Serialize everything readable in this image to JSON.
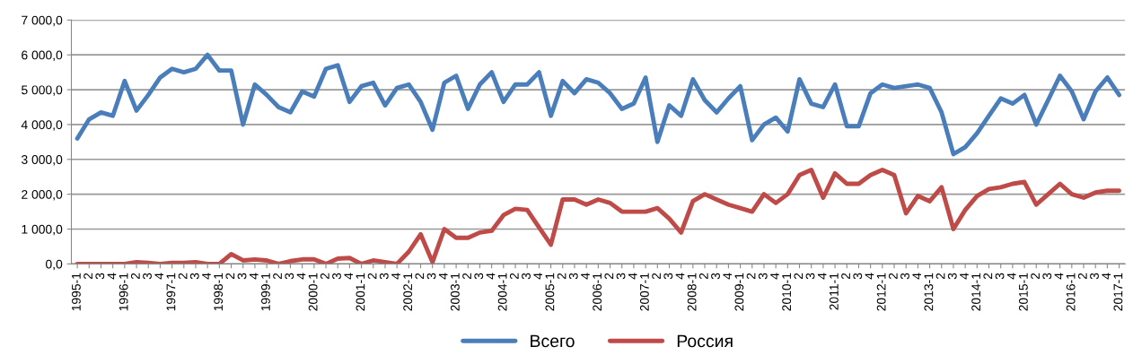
{
  "chart_data": {
    "type": "line",
    "categories": [
      "1995-1",
      "2",
      "3",
      "4",
      "1996-1",
      "2",
      "3",
      "4",
      "1997-1",
      "2",
      "3",
      "4",
      "1998-1",
      "2",
      "3",
      "4",
      "1999-1",
      "2",
      "3",
      "4",
      "2000-1",
      "2",
      "3",
      "4",
      "2001-1",
      "2",
      "3",
      "4",
      "2002-1",
      "2",
      "3",
      "4",
      "2003-1",
      "2",
      "3",
      "4",
      "2004-1",
      "2",
      "3",
      "4",
      "2005-1",
      "2",
      "3",
      "4",
      "2006-1",
      "2",
      "3",
      "4",
      "2007-1",
      "2",
      "3",
      "4",
      "2008-1",
      "2",
      "3",
      "4",
      "2009-1",
      "2",
      "3",
      "4",
      "2010-1",
      "2",
      "3",
      "4",
      "2011-1",
      "2",
      "3",
      "4",
      "2012-1",
      "2",
      "3",
      "4",
      "2013-1",
      "2",
      "3",
      "4",
      "2014-1",
      "2",
      "3",
      "4",
      "2015-1",
      "2",
      "3",
      "4",
      "2016-1",
      "2",
      "3",
      "4",
      "2017-1"
    ],
    "series": [
      {
        "name": "Всего",
        "color": "#4a7ebb",
        "values": [
          3600,
          4150,
          4350,
          4250,
          5250,
          4400,
          4850,
          5350,
          5600,
          5500,
          5600,
          6000,
          5550,
          5550,
          4000,
          5150,
          4850,
          4500,
          4350,
          4950,
          4800,
          5600,
          5700,
          4650,
          5100,
          5200,
          4550,
          5050,
          5150,
          4650,
          3850,
          5200,
          5400,
          4450,
          5150,
          5500,
          4650,
          5150,
          5150,
          5500,
          4250,
          5250,
          4900,
          5300,
          5200,
          4900,
          4450,
          4600,
          5350,
          3500,
          4550,
          4250,
          5300,
          4700,
          4350,
          4750,
          5100,
          3550,
          4000,
          4200,
          3800,
          5300,
          4600,
          4500,
          5150,
          3950,
          3950,
          4900,
          5150,
          5050,
          5100,
          5150,
          5050,
          4350,
          3150,
          3350,
          3750,
          4250,
          4750,
          4600,
          4850,
          4000,
          4700,
          5400,
          4950,
          4150,
          4950,
          5350,
          4850
        ]
      },
      {
        "name": "Россия",
        "color": "#be4b48",
        "values": [
          0,
          0,
          0,
          0,
          0,
          50,
          30,
          0,
          30,
          30,
          50,
          0,
          0,
          280,
          100,
          130,
          100,
          0,
          80,
          130,
          130,
          0,
          150,
          170,
          0,
          100,
          50,
          0,
          350,
          850,
          50,
          1000,
          750,
          750,
          900,
          950,
          1400,
          1580,
          1550,
          1050,
          550,
          1850,
          1850,
          1700,
          1850,
          1750,
          1500,
          1500,
          1500,
          1600,
          1300,
          900,
          1800,
          2000,
          1850,
          1700,
          1600,
          1500,
          2000,
          1750,
          2000,
          2550,
          2700,
          1900,
          2600,
          2300,
          2300,
          2550,
          2700,
          2550,
          1450,
          1950,
          1800,
          2200,
          1000,
          1550,
          1950,
          2150,
          2200,
          2300,
          2350,
          1700,
          2000,
          2300,
          2000,
          1900,
          2050,
          2100,
          2100
        ]
      }
    ],
    "ylim": [
      0,
      7000
    ],
    "yticks": [
      {
        "value": 0,
        "label": "0,0"
      },
      {
        "value": 1000,
        "label": "1 000,0"
      },
      {
        "value": 2000,
        "label": "2 000,0"
      },
      {
        "value": 3000,
        "label": "3 000,0"
      },
      {
        "value": 4000,
        "label": "4 000,0"
      },
      {
        "value": 5000,
        "label": "5 000,0"
      },
      {
        "value": 6000,
        "label": "6 000,0"
      },
      {
        "value": 7000,
        "label": "7 000,0"
      }
    ],
    "grid": "y",
    "legend": "bottom",
    "marker": "none",
    "line_style": "solid"
  }
}
